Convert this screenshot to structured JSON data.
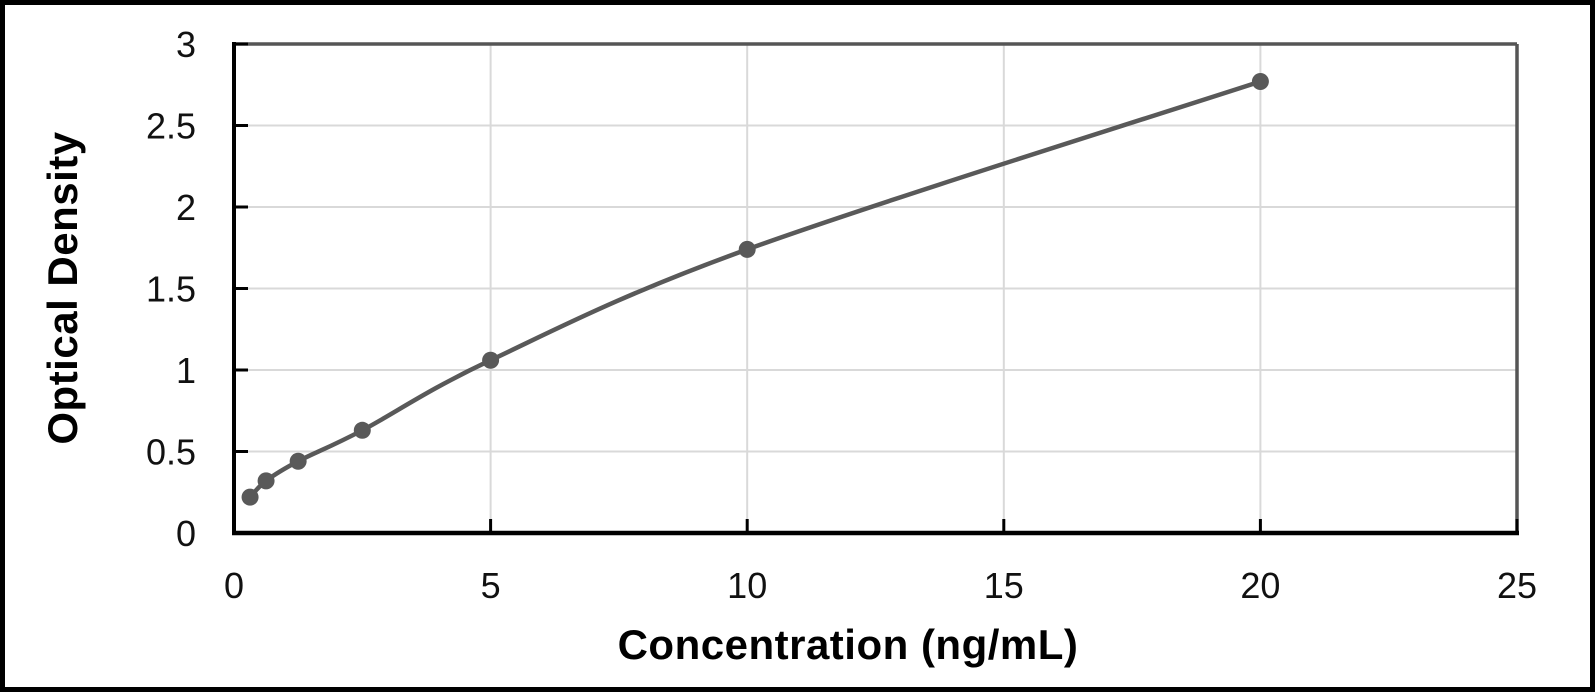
{
  "chart_data": {
    "type": "line",
    "title": "",
    "xlabel": "Concentration (ng/mL)",
    "ylabel": "Optical Density",
    "x": [
      0.313,
      0.625,
      1.25,
      2.5,
      5,
      10,
      20
    ],
    "y": [
      0.22,
      0.32,
      0.44,
      0.63,
      1.06,
      1.74,
      2.77
    ],
    "xlim": [
      0,
      25
    ],
    "ylim": [
      0,
      3
    ],
    "x_tick_values": [
      0,
      5,
      10,
      15,
      20,
      25
    ],
    "x_tick_labels": [
      "0",
      "5",
      "10",
      "15",
      "20",
      "25"
    ],
    "y_tick_values": [
      0,
      0.5,
      1,
      1.5,
      2,
      2.5,
      3
    ],
    "y_tick_labels": [
      "0",
      "0.5",
      "1",
      "1.5",
      "2",
      "2.5",
      "3"
    ],
    "grid": true,
    "legend_position": "none",
    "marker_style": "filled-circle",
    "line_style": "smooth",
    "colors": {
      "line": "#595959",
      "marker": "#595959",
      "gridline": "#d9d9d9",
      "axis": "#000000",
      "plot_border": "#555555",
      "tick_text": "#111111",
      "title_text": "#000000",
      "frame": "#000000",
      "background": "#ffffff"
    }
  }
}
